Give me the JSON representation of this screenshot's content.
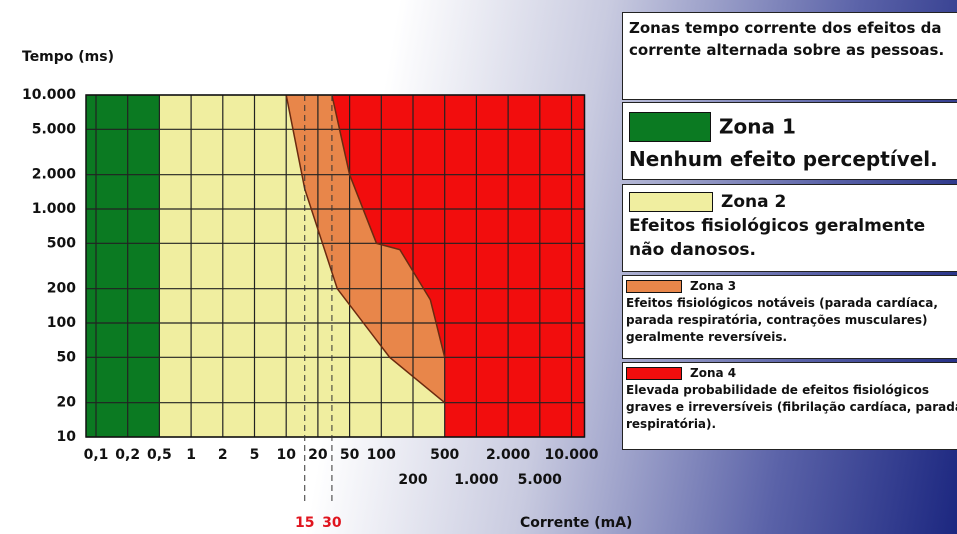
{
  "chart_data": {
    "type": "zones",
    "y_label": "Tempo (ms)",
    "x_label": "Corrente (mA)",
    "xlog": true,
    "ylog": true,
    "grid": true,
    "ylim": [
      10,
      10000
    ],
    "yticks": [
      {
        "value": 10000,
        "label": "10.000"
      },
      {
        "value": 5000,
        "label": "5.000"
      },
      {
        "value": 2000,
        "label": "2.000"
      },
      {
        "value": 1000,
        "label": "1.000"
      },
      500,
      200,
      100,
      50,
      20,
      10
    ],
    "xticks": [
      {
        "value": 0.1,
        "label": "0,1"
      },
      {
        "value": 0.2,
        "label": "0,2"
      },
      {
        "value": 0.5,
        "label": "0,5"
      },
      1,
      2,
      5,
      10,
      20,
      50,
      100,
      200,
      500,
      {
        "value": 1000,
        "label": "1.000"
      },
      {
        "value": 2000,
        "label": "2.000"
      },
      {
        "value": 5000,
        "label": "5.000"
      },
      {
        "value": 10000,
        "label": "10.000"
      }
    ],
    "markers": [
      15,
      30
    ],
    "marker_color": "#e0141e",
    "boundary_a": 0.5,
    "curve_b": {
      "x": [
        10,
        15,
        35,
        120,
        500
      ],
      "y": [
        10000,
        1500,
        200,
        50,
        20
      ]
    },
    "curve_c": {
      "x": [
        30,
        50,
        90,
        150,
        330,
        500
      ],
      "y": [
        10000,
        2000,
        500,
        440,
        160,
        50
      ]
    },
    "legend_title": "Zonas tempo corrente dos efeitos da corrente alternada sobre as pessoas.",
    "zones": [
      {
        "name": "Zona 1",
        "color": "#0b7a22",
        "description": "Nenhum efeito perceptível."
      },
      {
        "name": "Zona 2",
        "color": "#f0eea0",
        "description": "Efeitos fisiológicos geralmente não danosos."
      },
      {
        "name": "Zona 3",
        "color": "#e8864a",
        "description": "Efeitos fisiológicos notáveis (parada cardíaca, parada respiratória, contrações musculares) geralmente reversíveis."
      },
      {
        "name": "Zona 4",
        "color": "#f20d0d",
        "description": "Elevada probabilidade de efeitos fisiológicos graves e irreversíveis (fibrilação cardíaca, parada respiratória)."
      }
    ]
  }
}
